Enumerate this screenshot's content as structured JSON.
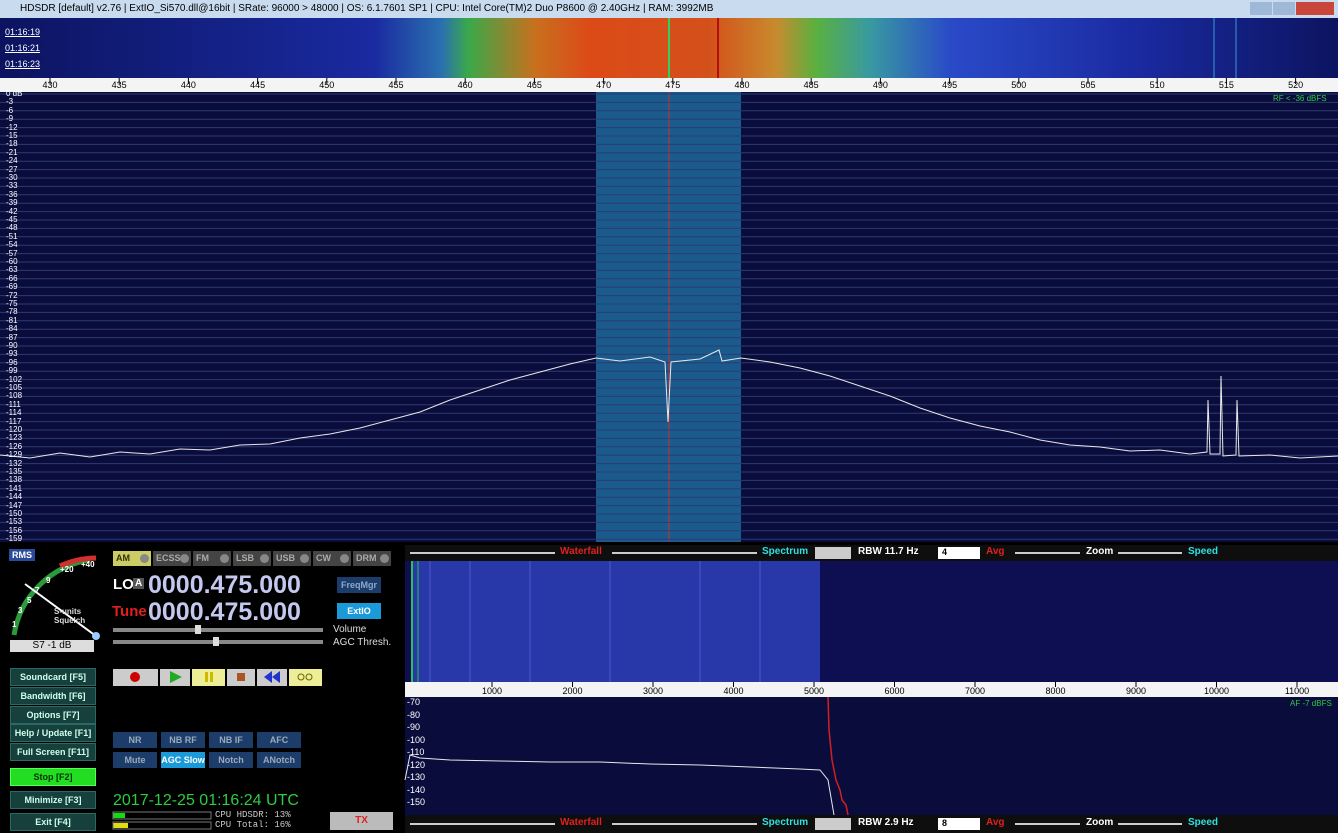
{
  "title_bar": {
    "title": "HDSDR  [default]  v2.76  |  ExtIO_Si570.dll@16bit  |  SRate: 96000 > 48000  |  OS: 6.1.7601 SP1  |  CPU: Intel Core(TM)2 Duo   P8600  @ 2.40GHz  |  RAM: 3992MB"
  },
  "rf_waterfall": {
    "times": [
      "01:16:19",
      "01:16:21",
      "01:16:23"
    ]
  },
  "rf_freq_axis": {
    "labels": [
      "430",
      "435",
      "440",
      "445",
      "450",
      "455",
      "460",
      "465",
      "470",
      "475",
      "480",
      "485",
      "490",
      "495",
      "500",
      "505",
      "510",
      "515",
      "520"
    ]
  },
  "rf_spectrum": {
    "db_labels": [
      "0 dB",
      "-3",
      "-6",
      "-9",
      "-12",
      "-15",
      "-18",
      "-21",
      "-24",
      "-27",
      "-30",
      "-33",
      "-36",
      "-39",
      "-42",
      "-45",
      "-48",
      "-51",
      "-54",
      "-57",
      "-60",
      "-63",
      "-66",
      "-69",
      "-72",
      "-75",
      "-78",
      "-81",
      "-84",
      "-87",
      "-90",
      "-93",
      "-96",
      "-99",
      "-102",
      "-105",
      "-108",
      "-111",
      "-114",
      "-117",
      "-120",
      "-123",
      "-126",
      "-129",
      "-132",
      "-135",
      "-138",
      "-141",
      "-144",
      "-147",
      "-150",
      "-153",
      "-156",
      "-159"
    ],
    "level": "RF < -36 dBFS"
  },
  "smeter": {
    "mode": "RMS",
    "scale": [
      "+40",
      "+20",
      "9",
      "7",
      "5",
      "3",
      "1"
    ],
    "caption1": "S-units",
    "caption2": "Squelch",
    "reading": "S7 -1 dB"
  },
  "modes": [
    "AM",
    "ECSS",
    "FM",
    "LSB",
    "USB",
    "CW",
    "DRM"
  ],
  "frequency": {
    "lo_label": "LO",
    "lo_button": "A",
    "lo_value": "0000.475.000",
    "tune_label": "Tune",
    "tune_value": "0000.475.000",
    "freqmgr": "FreqMgr",
    "extio": "ExtIO",
    "volume": "Volume",
    "agc": "AGC Thresh."
  },
  "side_buttons": [
    "Soundcard  [F5]",
    "Bandwidth  [F6]",
    "Options  [F7]",
    "Help / Update  [F1]",
    "Full Screen  [F11]",
    "Stop       [F2]",
    "Minimize  [F3]",
    "Exit       [F4]"
  ],
  "dsp_buttons": [
    "NR",
    "NB RF",
    "NB IF",
    "AFC",
    "Mute",
    "AGC Slow",
    "Notch",
    "ANotch"
  ],
  "clock": "2017-12-25  01:16:24 UTC",
  "cpu": {
    "hdsdr": "CPU HDSDR:  13%",
    "total": "CPU Total:  16%"
  },
  "tx": "TX",
  "rf_controls": {
    "waterfall": "Waterfall",
    "spectrum": "Spectrum",
    "rbw": "RBW  11.7 Hz",
    "avg_value": "4",
    "avg": "Avg",
    "zoom": "Zoom",
    "speed": "Speed"
  },
  "af_axis": {
    "labels": [
      "1000",
      "2000",
      "3000",
      "4000",
      "5000",
      "6000",
      "7000",
      "8000",
      "9000",
      "10000",
      "11000"
    ]
  },
  "af_spectrum": {
    "db_labels": [
      "-70",
      "-80",
      "-90",
      "-100",
      "-110",
      "-120",
      "-130",
      "-140",
      "-150"
    ],
    "level": "AF -7 dBFS"
  },
  "af_controls": {
    "waterfall": "Waterfall",
    "spectrum": "Spectrum",
    "rbw": "RBW  2.9 Hz",
    "avg_value": "8",
    "avg": "Avg",
    "zoom": "Zoom",
    "speed": "Speed"
  }
}
